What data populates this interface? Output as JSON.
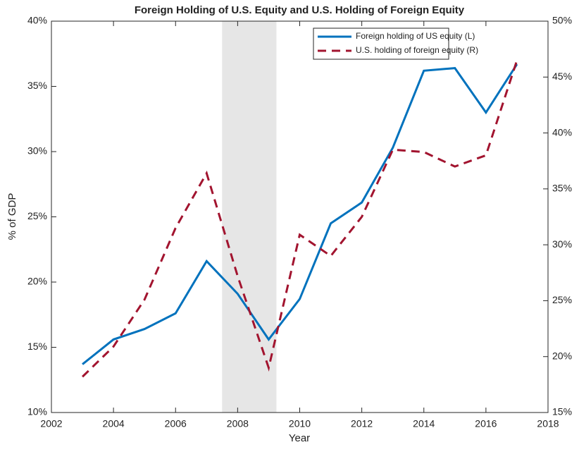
{
  "chart_data": {
    "type": "line",
    "title": "Foreign Holding of U.S. Equity and U.S. Holding of Foreign Equity",
    "x_label": "Year",
    "y_label": "% of GDP",
    "x": [
      2003,
      2004,
      2005,
      2006,
      2007,
      2008,
      2009,
      2010,
      2011,
      2012,
      2013,
      2014,
      2015,
      2016,
      2017
    ],
    "series": [
      {
        "name": "Foreign holding of US equity (L)",
        "color": "#0072bd",
        "dash": "solid",
        "axis": "y",
        "values": [
          13.7,
          15.6,
          16.4,
          17.6,
          21.6,
          19.1,
          15.6,
          18.7,
          24.5,
          26.1,
          30.3,
          36.2,
          36.4,
          33.0,
          36.7
        ]
      },
      {
        "name": "U.S. holding of foreign equity (R)",
        "color": "#a2142f",
        "dash": "dashed",
        "axis": "y2",
        "values": [
          18.2,
          20.9,
          25.1,
          31.5,
          36.4,
          27.2,
          19.0,
          30.9,
          29.0,
          32.5,
          38.5,
          38.3,
          37.0,
          38.0,
          46.5
        ]
      }
    ],
    "shaded_band": [
      2007.5,
      2009.25
    ],
    "shade_color": "#e6e6e6",
    "xlim": [
      2002,
      2018
    ],
    "xticks": [
      2002,
      2004,
      2006,
      2008,
      2010,
      2012,
      2014,
      2016,
      2018
    ],
    "ylim": [
      10,
      40
    ],
    "yticks": [
      {
        "value": 10,
        "label": "10%"
      },
      {
        "value": 15,
        "label": "15%"
      },
      {
        "value": 20,
        "label": "20%"
      },
      {
        "value": 25,
        "label": "25%"
      },
      {
        "value": 30,
        "label": "30%"
      },
      {
        "value": 35,
        "label": "35%"
      },
      {
        "value": 40,
        "label": "40%"
      }
    ],
    "y2lim": [
      15,
      50
    ],
    "y2ticks": [
      {
        "value": 15,
        "label": "15%"
      },
      {
        "value": 20,
        "label": "20%"
      },
      {
        "value": 25,
        "label": "25%"
      },
      {
        "value": 30,
        "label": "30%"
      },
      {
        "value": 35,
        "label": "35%"
      },
      {
        "value": 40,
        "label": "40%"
      },
      {
        "value": 45,
        "label": "45%"
      },
      {
        "value": 50,
        "label": "50%"
      }
    ],
    "legend": "top-right",
    "grid": false
  }
}
